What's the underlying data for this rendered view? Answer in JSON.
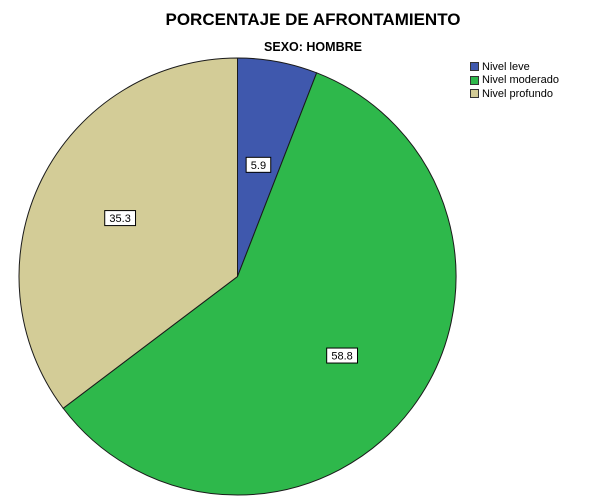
{
  "chart_data": {
    "type": "pie",
    "title": "PORCENTAJE DE AFRONTAMIENTO",
    "subtitle": "SEXO: HOMBRE",
    "legend_position": "top-right",
    "slices": [
      {
        "label": "Nivel leve",
        "value": 5.9,
        "display": "5.9",
        "color": "#3f58ad"
      },
      {
        "label": "Nivel moderado",
        "value": 58.8,
        "display": "58.8",
        "color": "#2eb84b"
      },
      {
        "label": "Nivel profundo",
        "value": 35.3,
        "display": "35.3",
        "color": "#d3cc97"
      }
    ]
  }
}
